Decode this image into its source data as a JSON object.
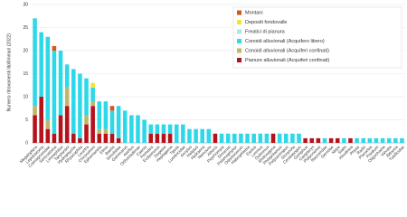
{
  "chart_data": {
    "type": "stacked-bar",
    "y_label": "Numero ritrovamenti litofilmmari (2022)",
    "categories": [
      "Megaloptera",
      "Lepidostoma",
      "Coenagrionidae",
      "Sericostoma",
      "Limnephilus",
      "Tanytarsini",
      "Hydropsyche",
      "Rhyacophila",
      "Leuctra",
      "Chironomini",
      "Ephemerella",
      "Elmis",
      "Baetis",
      "Simuliidae",
      "Gammarus",
      "Asellus",
      "Orthocladiinae",
      "Caenis",
      "Perlodes",
      "Ecdyonurus",
      "Dugesia",
      "Heptagenia",
      "Tipula",
      "Lumbricidae",
      "Ancylus",
      "Haliplus",
      "Hydraena",
      "Nemoura",
      "Atherix",
      "Psychomyia",
      "Dinocras",
      "Potamophylax",
      "Odontocerum",
      "Habrophlebia",
      "Esolus",
      "Limnius",
      "Oulimnius",
      "Rhithrogena",
      "Philopotamus",
      "Polycentropus",
      "Dicranota",
      "Ceratopogon",
      "Gomphus",
      "Calopteryx",
      "Platycnemis",
      "Naucoridae",
      "Gerridae",
      "Nepa",
      "Sialis",
      "Hirudinea",
      "Physa",
      "Radix",
      "Planorbis",
      "Pisidium",
      "Oligochaeta",
      "Valvata",
      "Bithynia",
      "Tubificidae"
    ],
    "series": [
      {
        "name": "Pianure alluvionali (Acquiferi confinati)",
        "color": "#b5121b",
        "values": [
          6,
          10,
          3,
          2,
          6,
          8,
          2,
          1,
          4,
          8,
          2,
          2,
          2,
          1,
          0,
          0,
          0,
          0,
          2,
          2,
          2,
          2,
          0,
          0,
          0,
          0,
          0,
          0,
          2,
          0,
          0,
          0,
          0,
          0,
          0,
          0,
          0,
          2,
          0,
          0,
          0,
          0,
          1,
          1,
          1,
          0,
          1,
          1,
          0,
          1,
          0,
          0,
          0,
          0,
          0,
          0,
          0,
          0
        ]
      },
      {
        "name": "Conoidi alluvionali (Acquiferi confinati)",
        "color": "#bdb76b",
        "values": [
          2,
          0,
          2,
          0,
          0,
          4,
          0,
          0,
          2,
          1,
          1,
          1,
          0,
          0,
          0,
          0,
          0,
          0,
          0,
          0,
          0,
          0,
          0,
          0,
          0,
          0,
          0,
          0,
          0,
          0,
          0,
          0,
          0,
          0,
          0,
          0,
          0,
          0,
          0,
          0,
          0,
          0,
          0,
          0,
          0,
          0,
          0,
          0,
          0,
          0,
          0,
          0,
          0,
          0,
          0,
          0,
          0,
          0
        ]
      },
      {
        "name": "Conoidi alluvionali (Acquifero libero)",
        "color": "#2ed8e8",
        "values": [
          19,
          14,
          18,
          18,
          14,
          5,
          14,
          14,
          8,
          3,
          6,
          6,
          5,
          7,
          7,
          6,
          6,
          5,
          2,
          2,
          2,
          2,
          4,
          4,
          3,
          3,
          3,
          3,
          0,
          2,
          2,
          2,
          2,
          2,
          2,
          2,
          2,
          0,
          2,
          2,
          2,
          2,
          0,
          0,
          0,
          1,
          0,
          0,
          1,
          0,
          1,
          1,
          1,
          1,
          1,
          1,
          1,
          1
        ]
      },
      {
        "name": "Freatici di pianura",
        "color": "#a8e6f0",
        "values": [
          0,
          0,
          0,
          0,
          0,
          0,
          0,
          0,
          0,
          0,
          0,
          0,
          0,
          0,
          0,
          0,
          0,
          0,
          0,
          0,
          0,
          0,
          0,
          0,
          0,
          0,
          0,
          0,
          0,
          0,
          0,
          0,
          0,
          0,
          0,
          0,
          0,
          0,
          0,
          0,
          0,
          0,
          0,
          0,
          0,
          0,
          0,
          0,
          0,
          0,
          0,
          0,
          0,
          0,
          0,
          0,
          0,
          0
        ]
      },
      {
        "name": "Depositi fondovalle",
        "color": "#f5e330",
        "values": [
          0,
          0,
          0,
          0,
          0,
          0,
          0,
          0,
          0,
          1,
          0,
          0,
          0,
          0,
          0,
          0,
          0,
          0,
          0,
          0,
          0,
          0,
          0,
          0,
          0,
          0,
          0,
          0,
          0,
          0,
          0,
          0,
          0,
          0,
          0,
          0,
          0,
          0,
          0,
          0,
          0,
          0,
          0,
          0,
          0,
          0,
          0,
          0,
          0,
          0,
          0,
          0,
          0,
          0,
          0,
          0,
          0,
          0
        ]
      },
      {
        "name": "Montani",
        "color": "#d9541e",
        "values": [
          0,
          0,
          0,
          1,
          0,
          0,
          0,
          0,
          0,
          0,
          0,
          0,
          1,
          0,
          0,
          0,
          0,
          0,
          0,
          0,
          0,
          0,
          0,
          0,
          0,
          0,
          0,
          0,
          0,
          0,
          0,
          0,
          0,
          0,
          0,
          0,
          0,
          0,
          0,
          0,
          0,
          0,
          0,
          0,
          0,
          0,
          0,
          0,
          0,
          0,
          0,
          0,
          0,
          0,
          0,
          0,
          0,
          0
        ]
      }
    ],
    "ylim": [
      0,
      30
    ],
    "yticks": [
      0,
      5,
      10,
      15,
      20,
      25,
      30
    ],
    "grid": true,
    "legend": "upper right"
  }
}
